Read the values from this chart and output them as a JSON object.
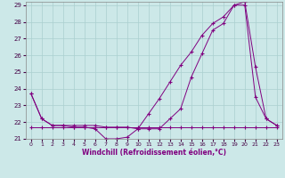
{
  "xlabel": "Windchill (Refroidissement éolien,°C)",
  "background_color": "#cce8e8",
  "grid_color": "#aacfcf",
  "line_color": "#800080",
  "xlim": [
    -0.5,
    23.5
  ],
  "ylim": [
    21,
    29.2
  ],
  "yticks": [
    21,
    22,
    23,
    24,
    25,
    26,
    27,
    28,
    29
  ],
  "xticks": [
    0,
    1,
    2,
    3,
    4,
    5,
    6,
    7,
    8,
    9,
    10,
    11,
    12,
    13,
    14,
    15,
    16,
    17,
    18,
    19,
    20,
    21,
    22,
    23
  ],
  "series": [
    {
      "x": [
        0,
        1,
        2,
        3,
        4,
        5,
        6,
        7,
        8,
        9,
        10,
        11,
        12,
        13,
        14,
        15,
        16,
        17,
        18,
        19,
        20,
        21,
        22,
        23
      ],
      "y": [
        23.7,
        22.2,
        21.8,
        21.8,
        21.7,
        21.7,
        21.6,
        21.0,
        21.0,
        21.1,
        21.6,
        21.6,
        21.6,
        22.2,
        22.8,
        24.7,
        26.1,
        27.5,
        27.9,
        29.0,
        29.0,
        23.5,
        22.2,
        21.8
      ]
    },
    {
      "x": [
        0,
        1,
        2,
        3,
        4,
        5,
        6,
        7,
        8,
        9,
        10,
        11,
        12,
        13,
        14,
        15,
        16,
        17,
        18,
        19,
        20,
        21,
        22,
        23
      ],
      "y": [
        23.7,
        22.2,
        21.8,
        21.8,
        21.8,
        21.8,
        21.8,
        21.7,
        21.7,
        21.7,
        21.6,
        22.5,
        23.4,
        24.4,
        25.4,
        26.2,
        27.2,
        27.9,
        28.3,
        29.0,
        29.2,
        25.3,
        22.2,
        21.8
      ]
    },
    {
      "x": [
        0,
        1,
        2,
        3,
        4,
        5,
        6,
        7,
        8,
        9,
        10,
        11,
        12,
        13,
        14,
        15,
        16,
        17,
        18,
        19,
        20,
        21,
        22,
        23
      ],
      "y": [
        21.7,
        21.7,
        21.7,
        21.7,
        21.7,
        21.7,
        21.7,
        21.7,
        21.7,
        21.7,
        21.7,
        21.7,
        21.7,
        21.7,
        21.7,
        21.7,
        21.7,
        21.7,
        21.7,
        21.7,
        21.7,
        21.7,
        21.7,
        21.7
      ]
    }
  ]
}
